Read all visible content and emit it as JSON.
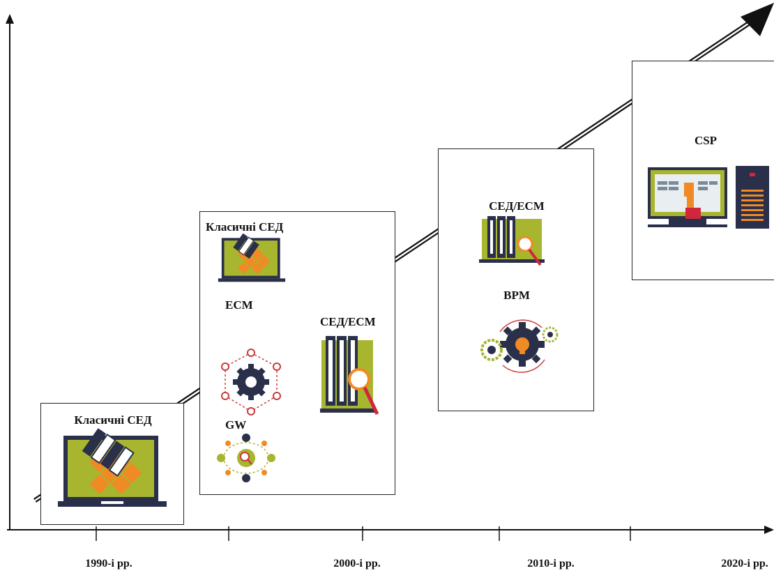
{
  "colors": {
    "accent_green": "#a8b52f",
    "accent_orange": "#f08a24",
    "dark_navy": "#2a2f4a",
    "line": "#111111",
    "gear_red": "#c83c3c",
    "magnify_red": "#d1263c"
  },
  "axis": {
    "ticks": [
      "1990-і рр.",
      "2000-і рр.",
      "2010-і рр.",
      "2020-і рр."
    ]
  },
  "stages": [
    {
      "items": [
        {
          "label": "Класичні СЕД",
          "icon": "laptop-document-icon"
        }
      ]
    },
    {
      "items": [
        {
          "label": "Класичні СЕД",
          "icon": "laptop-document-icon"
        },
        {
          "label": "ЕСМ",
          "icon": "gear-network-icon"
        },
        {
          "label": "СЕД/ЕСМ",
          "icon": "binders-magnifier-icon"
        },
        {
          "label": "GW",
          "icon": "collaboration-network-icon"
        }
      ]
    },
    {
      "items": [
        {
          "label": "СЕД/ЕСМ",
          "icon": "binders-magnifier-icon"
        },
        {
          "label": "BPM",
          "icon": "process-gears-icon"
        }
      ]
    },
    {
      "items": [
        {
          "label": "CSP",
          "icon": "cloud-workstation-icon"
        }
      ]
    }
  ]
}
